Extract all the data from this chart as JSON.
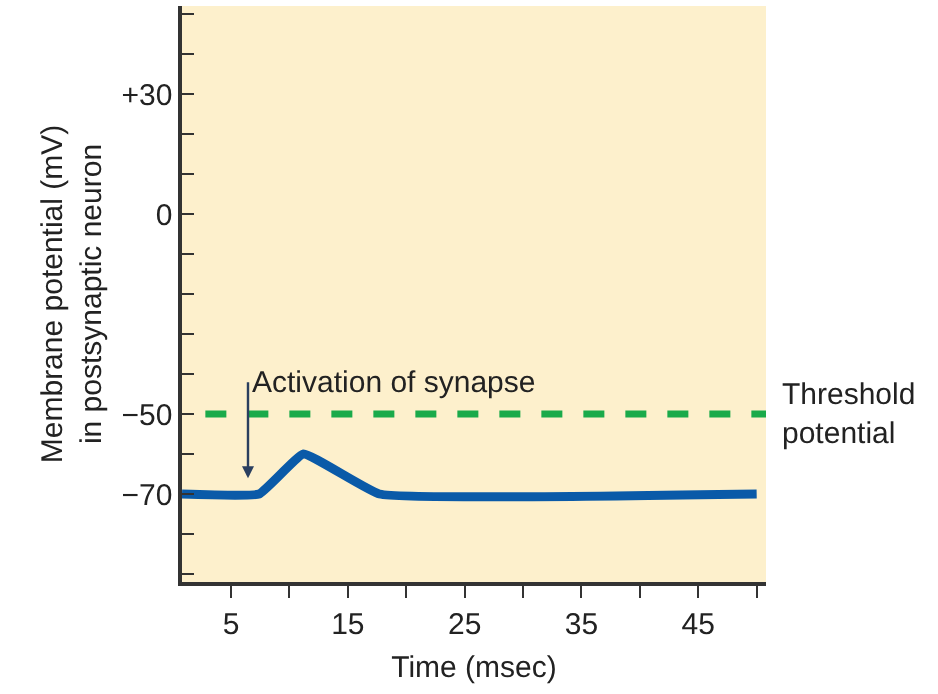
{
  "chart_data": {
    "type": "line",
    "xlabel": "Time (msec)",
    "ylabel": "Membrane potential (mV)\nin postsynaptic neuron",
    "x": [
      0.8,
      7.4,
      11.2,
      17.7,
      50.0
    ],
    "series": [
      {
        "color": "#0a5aa8",
        "values": [
          -70,
          -70,
          -60,
          -70,
          -70
        ]
      }
    ],
    "xlim": [
      0.8,
      50.8
    ],
    "xticks": [
      5,
      {
        "value": 10,
        "label": null
      },
      15,
      {
        "value": 20,
        "label": null
      },
      25,
      {
        "value": 30,
        "label": null
      },
      35,
      {
        "value": 40,
        "label": null
      },
      45,
      {
        "value": 50,
        "label": null
      }
    ],
    "ylim": [
      -92,
      52
    ],
    "yticks": [
      {
        "value": -90,
        "label": null
      },
      {
        "value": -80,
        "label": null
      },
      {
        "value": -70,
        "label": "−70"
      },
      {
        "value": -60,
        "label": null
      },
      {
        "value": -50,
        "label": "−50"
      },
      {
        "value": -40,
        "label": null
      },
      {
        "value": -30,
        "label": null
      },
      {
        "value": -20,
        "label": null
      },
      {
        "value": -10,
        "label": null
      },
      {
        "value": 0,
        "label": "0"
      },
      {
        "value": 10,
        "label": null
      },
      {
        "value": 20,
        "label": null
      },
      {
        "value": 30,
        "label": "+30"
      },
      {
        "value": 40,
        "label": null
      },
      {
        "value": 50,
        "label": null
      }
    ],
    "ref_lines": [
      {
        "axis": "y",
        "value": -50,
        "label": "Threshold\npotential",
        "color": "#1aaa4a",
        "line_style": "dashed"
      }
    ],
    "annotations": [
      "Activation of synapse"
    ],
    "grid": false,
    "legend": false,
    "marker": "none",
    "line_style": "solid"
  }
}
